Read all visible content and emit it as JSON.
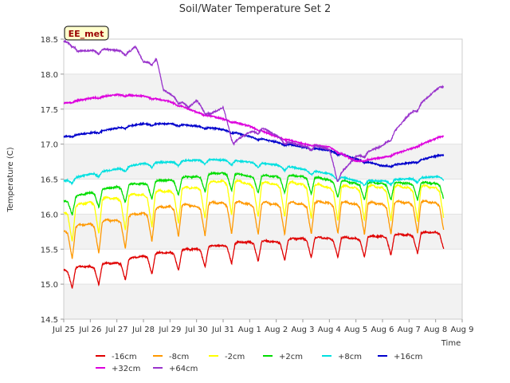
{
  "chart_data": {
    "type": "line",
    "title": "Soil/Water Temperature Set 2",
    "xlabel": "Time",
    "ylabel": "Temperature (C)",
    "badge": "EE_met",
    "x_range_days": [
      "2024-07-25",
      "2024-08-09"
    ],
    "x_ticks": [
      "Jul 25",
      "Jul 26",
      "Jul 27",
      "Jul 28",
      "Jul 29",
      "Jul 30",
      "Jul 31",
      "Aug 1",
      "Aug 2",
      "Aug 3",
      "Aug 4",
      "Aug 5",
      "Aug 6",
      "Aug 7",
      "Aug 8",
      "Aug 9"
    ],
    "ylim": [
      14.5,
      18.5
    ],
    "y_ticks": [
      "14.5",
      "15.0",
      "15.5",
      "16.0",
      "16.5",
      "17.0",
      "17.5",
      "18.0",
      "18.5"
    ],
    "grid": true,
    "legend_placement": "bottom",
    "colors": {
      "band": "#f2f2f2",
      "axis": "#cccccc"
    },
    "series": [
      {
        "name": "-16cm",
        "color": "#e00000",
        "amp": 0.35,
        "points": [
          [
            0.0,
            15.1
          ],
          [
            1.0,
            15.15
          ],
          [
            2.0,
            15.2
          ],
          [
            3.0,
            15.3
          ],
          [
            4.0,
            15.35
          ],
          [
            5.0,
            15.4
          ],
          [
            6.0,
            15.45
          ],
          [
            7.0,
            15.5
          ],
          [
            8.0,
            15.5
          ],
          [
            9.0,
            15.55
          ],
          [
            10.0,
            15.55
          ],
          [
            11.0,
            15.55
          ],
          [
            12.0,
            15.58
          ],
          [
            13.0,
            15.6
          ],
          [
            14.3,
            15.65
          ]
        ]
      },
      {
        "name": "-8cm",
        "color": "#ff9900",
        "amp": 0.55,
        "points": [
          [
            0.0,
            15.6
          ],
          [
            1.0,
            15.7
          ],
          [
            2.0,
            15.75
          ],
          [
            3.0,
            15.85
          ],
          [
            4.0,
            15.95
          ],
          [
            5.0,
            15.95
          ],
          [
            6.0,
            16.0
          ],
          [
            7.0,
            15.98
          ],
          [
            8.0,
            15.98
          ],
          [
            9.0,
            15.98
          ],
          [
            10.0,
            16.0
          ],
          [
            11.0,
            15.98
          ],
          [
            12.0,
            15.98
          ],
          [
            13.0,
            16.0
          ],
          [
            14.3,
            16.0
          ]
        ]
      },
      {
        "name": "-2cm",
        "color": "#ffff00",
        "amp": 0.6,
        "points": [
          [
            0.0,
            15.85
          ],
          [
            1.0,
            16.0
          ],
          [
            2.0,
            16.05
          ],
          [
            3.0,
            16.1
          ],
          [
            4.0,
            16.15
          ],
          [
            5.0,
            16.2
          ],
          [
            6.0,
            16.3
          ],
          [
            7.0,
            16.25
          ],
          [
            8.0,
            16.25
          ],
          [
            9.0,
            16.25
          ],
          [
            10.0,
            16.2
          ],
          [
            11.0,
            16.2
          ],
          [
            12.0,
            16.2
          ],
          [
            13.0,
            16.2
          ],
          [
            14.3,
            16.2
          ]
        ]
      },
      {
        "name": "+2cm",
        "color": "#00dd00",
        "amp": 0.3,
        "points": [
          [
            0.0,
            16.1
          ],
          [
            1.0,
            16.22
          ],
          [
            2.0,
            16.3
          ],
          [
            3.0,
            16.35
          ],
          [
            4.0,
            16.4
          ],
          [
            5.0,
            16.45
          ],
          [
            6.0,
            16.5
          ],
          [
            7.0,
            16.45
          ],
          [
            8.0,
            16.45
          ],
          [
            9.0,
            16.45
          ],
          [
            10.0,
            16.4
          ],
          [
            11.0,
            16.35
          ],
          [
            12.0,
            16.35
          ],
          [
            13.0,
            16.35
          ],
          [
            14.3,
            16.35
          ]
        ]
      },
      {
        "name": "+8cm",
        "color": "#00e0e0",
        "amp": 0.08,
        "points": [
          [
            0.0,
            16.45
          ],
          [
            1.0,
            16.55
          ],
          [
            2.0,
            16.62
          ],
          [
            3.0,
            16.7
          ],
          [
            4.0,
            16.72
          ],
          [
            5.0,
            16.75
          ],
          [
            6.0,
            16.75
          ],
          [
            7.0,
            16.72
          ],
          [
            8.0,
            16.68
          ],
          [
            9.0,
            16.62
          ],
          [
            10.0,
            16.55
          ],
          [
            11.0,
            16.45
          ],
          [
            12.0,
            16.45
          ],
          [
            13.0,
            16.48
          ],
          [
            14.3,
            16.52
          ]
        ]
      },
      {
        "name": "+16cm",
        "color": "#0000cc",
        "amp": 0.03,
        "points": [
          [
            0.0,
            17.1
          ],
          [
            1.0,
            17.15
          ],
          [
            2.0,
            17.22
          ],
          [
            3.0,
            17.28
          ],
          [
            4.0,
            17.28
          ],
          [
            5.0,
            17.25
          ],
          [
            6.0,
            17.2
          ],
          [
            7.0,
            17.1
          ],
          [
            8.0,
            17.02
          ],
          [
            9.0,
            16.95
          ],
          [
            10.0,
            16.9
          ],
          [
            11.0,
            16.78
          ],
          [
            12.0,
            16.68
          ],
          [
            13.0,
            16.72
          ],
          [
            14.3,
            16.85
          ]
        ]
      },
      {
        "name": "+32cm",
        "color": "#dd00dd",
        "amp": 0.02,
        "points": [
          [
            0.0,
            17.58
          ],
          [
            1.0,
            17.65
          ],
          [
            2.0,
            17.7
          ],
          [
            3.0,
            17.68
          ],
          [
            4.0,
            17.6
          ],
          [
            5.0,
            17.45
          ],
          [
            6.0,
            17.35
          ],
          [
            7.0,
            17.25
          ],
          [
            8.0,
            17.1
          ],
          [
            9.0,
            17.0
          ],
          [
            10.0,
            16.95
          ],
          [
            11.0,
            16.75
          ],
          [
            12.0,
            16.8
          ],
          [
            13.0,
            16.92
          ],
          [
            14.3,
            17.12
          ]
        ]
      },
      {
        "name": "+64cm",
        "color": "#9933cc",
        "amp": 0.08,
        "points": [
          [
            0.0,
            18.45
          ],
          [
            0.35,
            18.42
          ],
          [
            0.5,
            18.3
          ],
          [
            1.5,
            18.33
          ],
          [
            2.5,
            18.3
          ],
          [
            2.7,
            18.37
          ],
          [
            3.0,
            18.15
          ],
          [
            3.5,
            18.18
          ],
          [
            3.75,
            17.75
          ],
          [
            4.2,
            17.65
          ],
          [
            4.7,
            17.5
          ],
          [
            5.0,
            17.6
          ],
          [
            5.5,
            17.4
          ],
          [
            6.0,
            17.5
          ],
          [
            6.4,
            17.0
          ],
          [
            7.0,
            17.15
          ],
          [
            7.5,
            17.2
          ],
          [
            8.0,
            17.1
          ],
          [
            8.5,
            17.0
          ],
          [
            9.0,
            16.95
          ],
          [
            9.5,
            16.95
          ],
          [
            10.0,
            16.9
          ],
          [
            10.3,
            16.5
          ],
          [
            11.0,
            16.8
          ],
          [
            12.0,
            16.95
          ],
          [
            13.0,
            17.4
          ],
          [
            14.3,
            17.85
          ]
        ]
      }
    ]
  }
}
